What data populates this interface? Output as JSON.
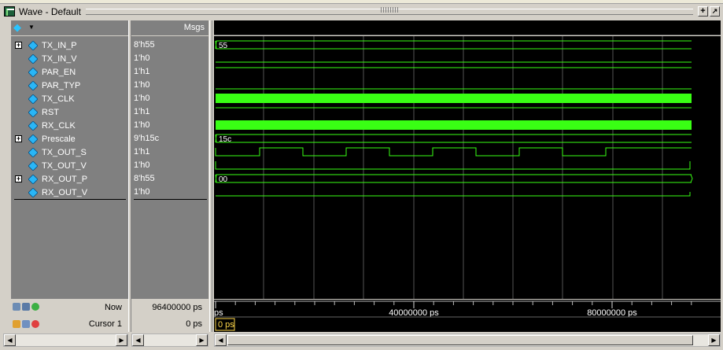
{
  "window": {
    "title": "Wave - Default"
  },
  "header": {
    "msgs_label": "Msgs"
  },
  "signals": [
    {
      "name": "TX_IN_P",
      "value": "8'h55",
      "expandable": true,
      "bus_label": "55"
    },
    {
      "name": "TX_IN_V",
      "value": "1'h0",
      "expandable": false
    },
    {
      "name": "PAR_EN",
      "value": "1'h1",
      "expandable": false
    },
    {
      "name": "PAR_TYP",
      "value": "1'h0",
      "expandable": false
    },
    {
      "name": "TX_CLK",
      "value": "1'h0",
      "expandable": false
    },
    {
      "name": "RST",
      "value": "1'h1",
      "expandable": false
    },
    {
      "name": "RX_CLK",
      "value": "1'h0",
      "expandable": false
    },
    {
      "name": "Prescale",
      "value": "9'h15c",
      "expandable": true,
      "bus_label": "15c"
    },
    {
      "name": "TX_OUT_S",
      "value": "1'h1",
      "expandable": false
    },
    {
      "name": "TX_OUT_V",
      "value": "1'h0",
      "expandable": false
    },
    {
      "name": "RX_OUT_P",
      "value": "8'h55",
      "expandable": true,
      "bus_label": "00"
    },
    {
      "name": "RX_OUT_V",
      "value": "1'h0",
      "expandable": false
    }
  ],
  "footer": {
    "now_label": "Now",
    "now_value": "96400000 ps",
    "cursor_label": "Cursor 1",
    "cursor_value": "0 ps",
    "timeline_start": "ps",
    "timeline_mid": "40000000 ps",
    "timeline_end": "80000000 ps",
    "cursor_marker": "0 ps"
  },
  "colors": {
    "wave": "#39ff14",
    "signal_icon": "#29b6f6",
    "pane_bg": "#808080",
    "wave_bg": "#000000",
    "grid": "#555555",
    "cursor_box": "#ffd84a"
  }
}
